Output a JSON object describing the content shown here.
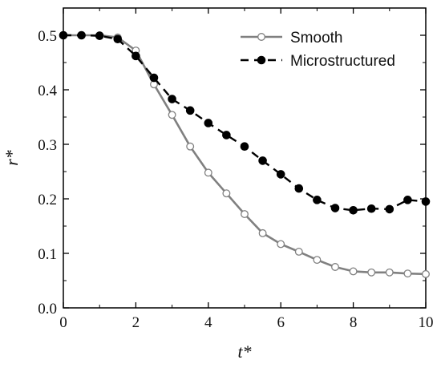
{
  "chart_data": {
    "type": "line",
    "xlabel": "t*",
    "ylabel": "r*",
    "xlim": [
      0,
      10
    ],
    "ylim": [
      0.0,
      0.55
    ],
    "xticks": [
      0,
      2,
      4,
      6,
      8,
      10
    ],
    "yticks": [
      0.0,
      0.1,
      0.2,
      0.3,
      0.4,
      0.5
    ],
    "xtick_labels": [
      "0",
      "2",
      "4",
      "6",
      "8",
      "10"
    ],
    "ytick_labels": [
      "0.0",
      "0.1",
      "0.2",
      "0.3",
      "0.4",
      "0.5"
    ],
    "grid": false,
    "legend_position": "top-right",
    "series": [
      {
        "name": "Smooth",
        "line_style": "solid",
        "marker": "open-circle",
        "color": "#808080",
        "x": [
          0,
          0.5,
          1.0,
          1.5,
          2.0,
          2.5,
          3.0,
          3.5,
          4.0,
          4.5,
          5.0,
          5.5,
          6.0,
          6.5,
          7.0,
          7.5,
          8.0,
          8.5,
          9.0,
          9.5,
          10.0
        ],
        "y": [
          0.5,
          0.5,
          0.5,
          0.496,
          0.472,
          0.41,
          0.354,
          0.296,
          0.248,
          0.21,
          0.172,
          0.137,
          0.117,
          0.103,
          0.088,
          0.075,
          0.067,
          0.065,
          0.065,
          0.063,
          0.062
        ]
      },
      {
        "name": "Microstructured",
        "line_style": "dashed",
        "marker": "filled-circle",
        "color": "#000000",
        "x": [
          0,
          0.5,
          1.0,
          1.5,
          2.0,
          2.5,
          3.0,
          3.5,
          4.0,
          4.5,
          5.0,
          5.5,
          6.0,
          6.5,
          7.0,
          7.5,
          8.0,
          8.5,
          9.0,
          9.5,
          10.0
        ],
        "y": [
          0.5,
          0.5,
          0.499,
          0.493,
          0.462,
          0.422,
          0.383,
          0.362,
          0.339,
          0.317,
          0.296,
          0.27,
          0.245,
          0.219,
          0.198,
          0.183,
          0.179,
          0.182,
          0.181,
          0.198,
          0.195
        ]
      }
    ]
  }
}
